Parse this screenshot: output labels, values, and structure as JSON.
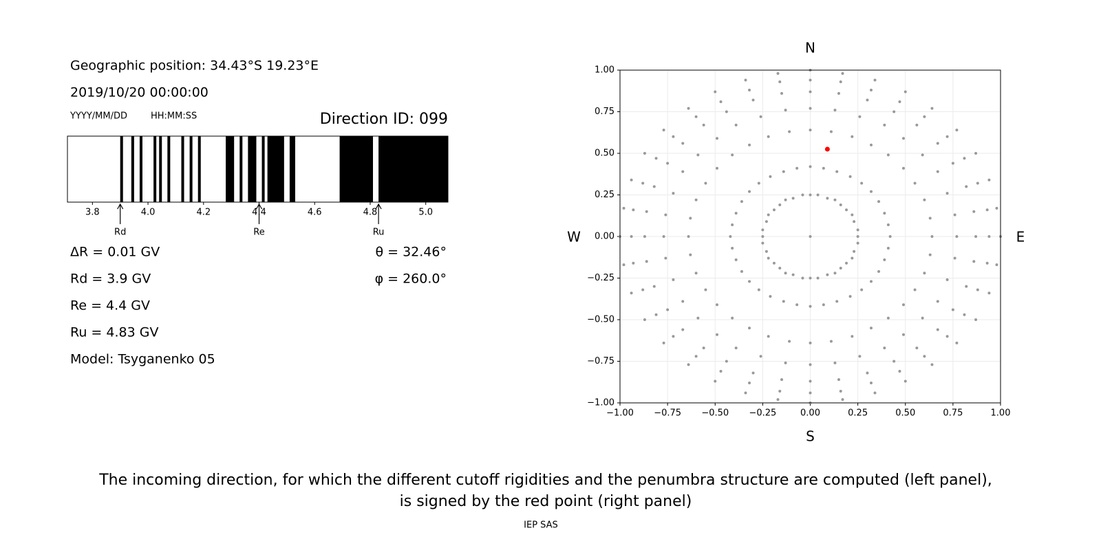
{
  "header": {
    "position": "Geographic position: 34.43°S 19.23°E",
    "datetime": "2019/10/20 00:00:00",
    "date_format": "YYYY/MM/DD",
    "time_format": "HH:MM:SS",
    "direction": "Direction ID: 099"
  },
  "parameters": [
    "ΔR = 0.01 GV",
    "Rd = 3.9 GV",
    "Re = 4.4 GV",
    "Ru = 4.83 GV",
    "Model: Tsyganenko 05"
  ],
  "angles": [
    "θ = 32.46°",
    "φ = 260.0°"
  ],
  "caption": [
    "The incoming direction, for which the different cutoff rigidities and the penumbra structure are computed (left panel),",
    "is signed by the red point (right panel)"
  ],
  "footer": "IEP SAS",
  "chart_data": [
    {
      "type": "penumbra",
      "xlim": [
        3.71,
        5.08
      ],
      "xticks": [
        3.8,
        {
          "value": 4.0,
          "label": "4.0"
        },
        4.2,
        4.4,
        4.6,
        4.8,
        {
          "value": 5.0,
          "label": "5.0"
        }
      ],
      "color": "#000000",
      "bands": {
        "start": [
          3.9,
          3.94,
          3.97,
          4.02,
          4.04,
          4.07,
          4.12,
          4.15,
          4.18,
          4.28,
          4.33,
          4.36,
          4.41,
          4.43,
          4.51,
          4.69,
          4.83
        ],
        "end": [
          3.91,
          3.95,
          3.98,
          4.03,
          4.05,
          4.08,
          4.13,
          4.16,
          4.19,
          4.31,
          4.34,
          4.39,
          4.42,
          4.49,
          4.53,
          4.81,
          5.08
        ]
      },
      "markers": [
        {
          "label": "Rd",
          "value": 3.9
        },
        {
          "label": "Re",
          "value": 4.4
        },
        {
          "label": "Ru",
          "value": 4.83
        }
      ]
    },
    {
      "type": "scatter",
      "xlim": [
        -1,
        1
      ],
      "ylim": [
        -1,
        1
      ],
      "xticks": [
        {
          "value": -1,
          "label": "−1.00"
        },
        {
          "value": -0.75,
          "label": "−0.75"
        },
        {
          "value": -0.5,
          "label": "−0.50"
        },
        {
          "value": -0.25,
          "label": "−0.25"
        },
        {
          "value": 0,
          "label": "0.00"
        },
        {
          "value": 0.25,
          "label": "0.25"
        },
        {
          "value": 0.5,
          "label": "0.50"
        },
        {
          "value": 0.75,
          "label": "0.75"
        },
        {
          "value": 1,
          "label": "1.00"
        }
      ],
      "yticks": [
        {
          "value": -1,
          "label": "−1.00"
        },
        {
          "value": -0.75,
          "label": "−0.75"
        },
        {
          "value": -0.5,
          "label": "−0.50"
        },
        {
          "value": -0.25,
          "label": "−0.25"
        },
        {
          "value": 0,
          "label": "0.00"
        },
        {
          "value": 0.25,
          "label": "0.25"
        },
        {
          "value": 0.5,
          "label": "0.50"
        },
        {
          "value": 0.75,
          "label": "0.75"
        },
        {
          "value": 1,
          "label": "1.00"
        }
      ],
      "grid": true,
      "compass": {
        "top": "N",
        "bottom": "S",
        "left": "W",
        "right": "E"
      },
      "series": [
        {
          "color": "#999999",
          "x": [
            0,
            0.04,
            0.09,
            0.13,
            0.16,
            0.19,
            0.22,
            0.23,
            0.25,
            0.25,
            0.25,
            0.23,
            0.22,
            0.19,
            0.16,
            0.13,
            0.09,
            0.04,
            0,
            -0.04,
            -0.09,
            -0.13,
            -0.16,
            -0.19,
            -0.22,
            -0.23,
            -0.25,
            -0.25,
            -0.25,
            -0.23,
            -0.22,
            -0.19,
            -0.16,
            -0.13,
            -0.09,
            -0.04,
            0,
            0.07,
            0.14,
            0.21,
            0.27,
            0.32,
            0.36,
            0.39,
            0.41,
            0.42,
            0.41,
            0.39,
            0.36,
            0.32,
            0.27,
            0.21,
            0.14,
            0.07,
            0,
            -0.07,
            -0.14,
            -0.21,
            -0.27,
            -0.32,
            -0.36,
            -0.39,
            -0.41,
            -0.42,
            -0.41,
            -0.39,
            -0.36,
            -0.32,
            -0.27,
            -0.21,
            -0.14,
            -0.07,
            0,
            0.11,
            0.22,
            0.32,
            0.41,
            0.49,
            0.55,
            0.6,
            0.63,
            0.64,
            0.63,
            0.6,
            0.55,
            0.49,
            0.41,
            0.32,
            0.22,
            0.11,
            0,
            -0.11,
            -0.22,
            -0.32,
            -0.41,
            -0.49,
            -0.55,
            -0.6,
            -0.63,
            -0.64,
            -0.63,
            -0.6,
            -0.55,
            -0.49,
            -0.41,
            -0.32,
            -0.22,
            -0.11,
            0,
            0.13,
            0.26,
            0.39,
            0.49,
            0.59,
            0.67,
            0.72,
            0.76,
            0.77,
            0.76,
            0.72,
            0.67,
            0.59,
            0.49,
            0.39,
            0.26,
            0.13,
            0,
            -0.13,
            -0.26,
            -0.39,
            -0.49,
            -0.59,
            -0.67,
            -0.72,
            -0.76,
            -0.77,
            -0.76,
            -0.72,
            -0.67,
            -0.59,
            -0.49,
            -0.39,
            -0.26,
            -0.13,
            0,
            0.15,
            0.3,
            0.44,
            0.56,
            0.67,
            0.75,
            0.82,
            0.86,
            0.87,
            0.86,
            0.82,
            0.75,
            0.67,
            0.56,
            0.44,
            0.3,
            0.15,
            0,
            -0.15,
            -0.3,
            -0.44,
            -0.56,
            -0.67,
            -0.75,
            -0.82,
            -0.86,
            -0.87,
            -0.86,
            -0.82,
            -0.75,
            -0.67,
            -0.56,
            -0.44,
            -0.3,
            -0.15,
            0,
            0.16,
            0.32,
            0.47,
            0.6,
            0.72,
            0.81,
            0.88,
            0.93,
            0.94,
            0.93,
            0.88,
            0.81,
            0.72,
            0.6,
            0.47,
            0.32,
            0.16,
            0,
            -0.16,
            -0.32,
            -0.47,
            -0.6,
            -0.72,
            -0.81,
            -0.88,
            -0.93,
            -0.94,
            -0.93,
            -0.88,
            -0.81,
            -0.72,
            -0.6,
            -0.47,
            -0.32,
            -0.16,
            0,
            0.17,
            0.34,
            0.5,
            0.64,
            0.77,
            0.87,
            0.94,
            0.98,
            1,
            0.98,
            0.94,
            0.87,
            0.77,
            0.64,
            0.5,
            0.34,
            0.17,
            0,
            -0.17,
            -0.34,
            -0.5,
            -0.64,
            -0.77,
            -0.87,
            -0.94,
            -0.98,
            -1,
            -0.98,
            -0.94,
            -0.87,
            -0.77,
            -0.64,
            -0.5,
            -0.34,
            -0.17,
            0
          ],
          "y": [
            0.25,
            0.25,
            0.23,
            0.22,
            0.19,
            0.16,
            0.13,
            0.09,
            0.04,
            0,
            -0.04,
            -0.09,
            -0.13,
            -0.16,
            -0.19,
            -0.22,
            -0.23,
            -0.25,
            -0.25,
            -0.25,
            -0.23,
            -0.22,
            -0.19,
            -0.16,
            -0.13,
            -0.09,
            -0.04,
            0,
            0.04,
            0.09,
            0.13,
            0.16,
            0.19,
            0.22,
            0.23,
            0.25,
            0.42,
            0.41,
            0.39,
            0.36,
            0.32,
            0.27,
            0.21,
            0.14,
            0.07,
            0,
            -0.07,
            -0.14,
            -0.21,
            -0.27,
            -0.32,
            -0.36,
            -0.39,
            -0.41,
            -0.42,
            -0.41,
            -0.39,
            -0.36,
            -0.32,
            -0.27,
            -0.21,
            -0.14,
            -0.07,
            0,
            0.07,
            0.14,
            0.21,
            0.27,
            0.32,
            0.36,
            0.39,
            0.41,
            0.64,
            0.63,
            0.6,
            0.55,
            0.49,
            0.41,
            0.32,
            0.22,
            0.11,
            0,
            -0.11,
            -0.22,
            -0.32,
            -0.41,
            -0.49,
            -0.55,
            -0.6,
            -0.63,
            -0.64,
            -0.63,
            -0.6,
            -0.55,
            -0.49,
            -0.41,
            -0.32,
            -0.22,
            -0.11,
            0,
            0.11,
            0.22,
            0.32,
            0.41,
            0.49,
            0.55,
            0.6,
            0.63,
            0.77,
            0.76,
            0.72,
            0.67,
            0.59,
            0.49,
            0.39,
            0.26,
            0.13,
            0,
            -0.13,
            -0.26,
            -0.39,
            -0.49,
            -0.59,
            -0.67,
            -0.72,
            -0.76,
            -0.77,
            -0.76,
            -0.72,
            -0.67,
            -0.59,
            -0.49,
            -0.39,
            -0.26,
            -0.13,
            0,
            0.13,
            0.26,
            0.39,
            0.49,
            0.59,
            0.67,
            0.72,
            0.76,
            0.87,
            0.86,
            0.82,
            0.75,
            0.67,
            0.56,
            0.44,
            0.3,
            0.15,
            0,
            -0.15,
            -0.3,
            -0.44,
            -0.56,
            -0.67,
            -0.75,
            -0.82,
            -0.86,
            -0.87,
            -0.86,
            -0.82,
            -0.75,
            -0.67,
            -0.56,
            -0.44,
            -0.3,
            -0.15,
            0,
            0.15,
            0.3,
            0.44,
            0.56,
            0.67,
            0.75,
            0.82,
            0.86,
            0.94,
            0.93,
            0.88,
            0.81,
            0.72,
            0.6,
            0.47,
            0.32,
            0.16,
            0,
            -0.16,
            -0.32,
            -0.47,
            -0.6,
            -0.72,
            -0.81,
            -0.88,
            -0.93,
            -0.94,
            -0.93,
            -0.88,
            -0.81,
            -0.72,
            -0.6,
            -0.47,
            -0.32,
            -0.16,
            0,
            0.16,
            0.32,
            0.47,
            0.6,
            0.72,
            0.81,
            0.88,
            0.93,
            1,
            0.98,
            0.94,
            0.87,
            0.77,
            0.64,
            0.5,
            0.34,
            0.17,
            0,
            -0.17,
            -0.34,
            -0.5,
            -0.64,
            -0.77,
            -0.87,
            -0.94,
            -0.98,
            -1,
            -0.98,
            -0.94,
            -0.87,
            -0.77,
            -0.64,
            -0.5,
            -0.34,
            -0.17,
            0,
            0.17,
            0.34,
            0.5,
            0.64,
            0.77,
            0.87,
            0.94,
            0.98,
            0
          ]
        },
        {
          "color": "#ff0000",
          "x": [
            0.09
          ],
          "y": [
            0.525
          ]
        }
      ]
    }
  ]
}
